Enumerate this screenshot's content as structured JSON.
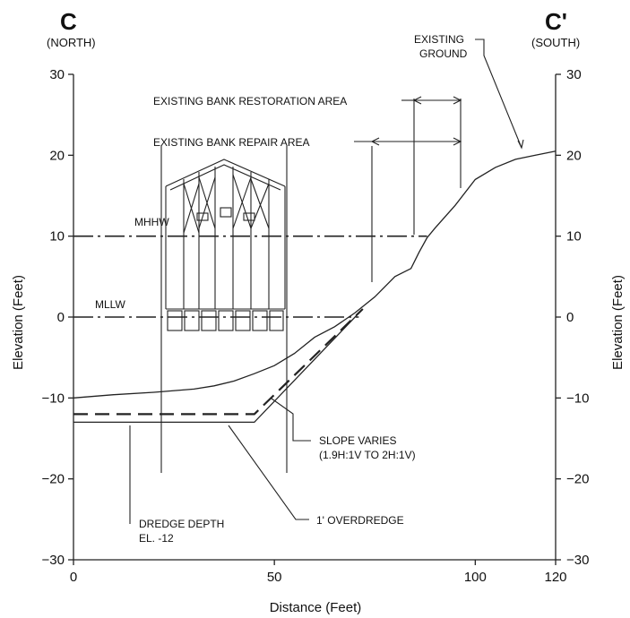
{
  "header": {
    "left_letter": "C",
    "left_sub": "(NORTH)",
    "right_letter": "C'",
    "right_sub": "(SOUTH)"
  },
  "axes": {
    "x_label": "Distance (Feet)",
    "y_label_left": "Elevation (Feet)",
    "y_label_right": "Elevation (Feet)",
    "x_ticks": [
      "0",
      "50",
      "100",
      "120"
    ],
    "y_ticks": [
      "30",
      "20",
      "10",
      "0",
      "-10",
      "-20",
      "-30"
    ],
    "y_ticks_display": [
      "30",
      "20",
      "10",
      "0",
      "−10",
      "−20",
      "−30"
    ]
  },
  "labels": {
    "mhhw": "MHHW",
    "mllw": "MLLW",
    "restoration": "EXISTING BANK RESTORATION AREA",
    "repair": "EXISTING BANK REPAIR AREA",
    "existing_ground_1": "EXISTING",
    "existing_ground_2": "GROUND",
    "slope_1": "SLOPE VARIES",
    "slope_2": "(1.9H:1V TO 2H:1V)",
    "dredge_1": "DREDGE DEPTH",
    "dredge_2": "EL. -12",
    "overdredge": "1' OVERDREDGE"
  },
  "chart_data": {
    "type": "line",
    "xlabel": "Distance (Feet)",
    "ylabel": "Elevation (Feet)",
    "xlim": [
      0,
      120
    ],
    "ylim": [
      -30,
      30
    ],
    "x_ticks": [
      0,
      50,
      100,
      120
    ],
    "y_ticks": [
      30,
      20,
      10,
      0,
      -10,
      -20,
      -30
    ],
    "tide_levels": {
      "MHHW": 10,
      "MLLW": 0
    },
    "dredge_depth": -12,
    "overdredge_depth": -13,
    "series": [
      {
        "name": "EXISTING GROUND",
        "x": [
          0,
          10,
          20,
          30,
          35,
          40,
          45,
          50,
          55,
          60,
          65,
          70,
          75,
          80,
          82,
          84,
          86,
          88,
          90,
          95,
          100,
          105,
          110,
          115,
          120
        ],
        "y": [
          -10,
          -9.6,
          -9.3,
          -8.9,
          -8.5,
          -7.9,
          -7.0,
          -6.0,
          -4.5,
          -2.5,
          -1.2,
          0.5,
          2.5,
          5,
          5.5,
          6,
          8,
          9.8,
          11,
          13.8,
          17,
          18.5,
          19.5,
          20,
          20.5
        ]
      },
      {
        "name": "DREDGE DEPTH",
        "x": [
          0,
          45,
          72
        ],
        "y": [
          -12,
          -12,
          1
        ]
      },
      {
        "name": "1' OVERDREDGE",
        "x": [
          0,
          45,
          72
        ],
        "y": [
          -13,
          -13,
          1
        ]
      }
    ]
  }
}
